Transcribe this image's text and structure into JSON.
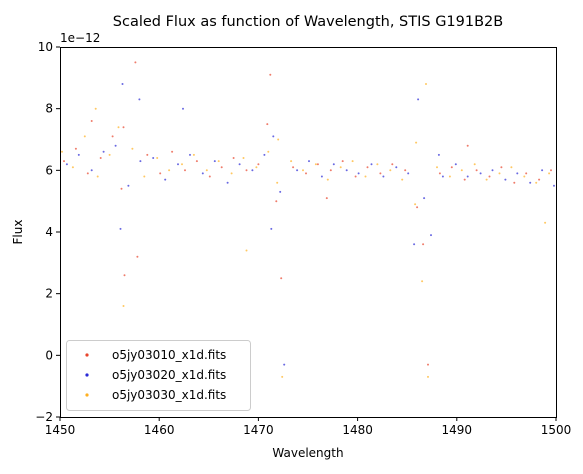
{
  "chart_data": {
    "type": "scatter",
    "title": "Scaled Flux as function of Wavelength, STIS G191B2B",
    "xlabel": "Wavelength",
    "ylabel": "Flux",
    "offset_text": "1e−12",
    "xlim": [
      1450,
      1500
    ],
    "ylim": [
      -2,
      10
    ],
    "xticks": [
      1450,
      1460,
      1470,
      1480,
      1490,
      1500
    ],
    "yticks": [
      -2,
      0,
      2,
      4,
      6,
      8,
      10
    ],
    "grid": false,
    "legend_position": "lower-left",
    "marker_size": "small dots",
    "series": [
      {
        "name": "o5jy03010_x1d.fits",
        "color": "#e8452c",
        "x": [
          1450.4,
          1451.6,
          1452.8,
          1454.1,
          1455.3,
          1456.2,
          1456.5,
          1457.6,
          1458.8,
          1460.1,
          1461.3,
          1462.6,
          1463.8,
          1465.1,
          1466.3,
          1467.5,
          1468.8,
          1470.0,
          1471.2,
          1471.8,
          1472.3,
          1473.5,
          1474.8,
          1476.0,
          1477.3,
          1478.5,
          1479.8,
          1481.0,
          1482.3,
          1483.5,
          1484.8,
          1486.0,
          1486.6,
          1487.1,
          1488.3,
          1489.5,
          1490.8,
          1492.0,
          1493.3,
          1494.5,
          1495.8,
          1497.0,
          1498.3,
          1499.5,
          1457.8,
          1456.4,
          1470.9,
          1453.2,
          1476.9,
          1491.1
        ],
        "y": [
          6.3,
          6.7,
          5.9,
          6.4,
          7.1,
          5.4,
          2.6,
          9.5,
          6.5,
          5.9,
          6.6,
          6.0,
          6.3,
          5.8,
          6.1,
          6.4,
          6.0,
          6.2,
          9.1,
          5.0,
          2.5,
          6.1,
          5.9,
          6.2,
          6.0,
          6.3,
          5.8,
          6.1,
          5.9,
          6.2,
          6.0,
          4.8,
          3.6,
          -0.3,
          5.9,
          6.1,
          5.7,
          6.0,
          5.8,
          6.1,
          5.6,
          5.9,
          5.7,
          6.0,
          3.2,
          7.4,
          7.5,
          7.6,
          5.1,
          6.8
        ]
      },
      {
        "name": "o5jy03020_x1d.fits",
        "color": "#2a2ad6",
        "x": [
          1450.7,
          1451.9,
          1453.2,
          1454.4,
          1455.6,
          1456.3,
          1456.9,
          1458.1,
          1459.4,
          1460.6,
          1461.9,
          1463.1,
          1464.4,
          1465.6,
          1466.9,
          1468.1,
          1469.4,
          1470.6,
          1471.5,
          1472.2,
          1472.6,
          1473.9,
          1475.1,
          1476.4,
          1477.6,
          1478.9,
          1480.1,
          1481.4,
          1482.6,
          1483.9,
          1485.1,
          1486.1,
          1486.7,
          1487.4,
          1488.6,
          1489.9,
          1491.1,
          1492.4,
          1493.6,
          1494.9,
          1496.1,
          1497.4,
          1498.6,
          1499.8,
          1456.1,
          1462.4,
          1458.0,
          1471.3,
          1485.7,
          1488.2
        ],
        "y": [
          6.2,
          6.5,
          6.0,
          6.6,
          6.8,
          8.8,
          5.5,
          6.3,
          6.4,
          5.7,
          6.2,
          6.5,
          5.9,
          6.3,
          5.6,
          6.2,
          6.0,
          6.5,
          7.1,
          5.3,
          -0.3,
          6.0,
          6.3,
          5.8,
          6.2,
          6.0,
          5.9,
          6.2,
          5.8,
          6.1,
          5.9,
          8.3,
          5.1,
          3.9,
          5.8,
          6.2,
          5.8,
          5.9,
          6.0,
          5.7,
          5.9,
          5.6,
          6.0,
          5.5,
          4.1,
          8.0,
          8.3,
          4.1,
          3.6,
          6.5
        ]
      },
      {
        "name": "o5jy03030_x1d.fits",
        "color": "#ffb020",
        "x": [
          1450.2,
          1451.3,
          1452.5,
          1453.8,
          1455.0,
          1455.9,
          1456.4,
          1457.3,
          1458.5,
          1459.8,
          1461.0,
          1462.3,
          1463.5,
          1464.8,
          1466.0,
          1467.3,
          1468.5,
          1469.8,
          1471.0,
          1471.9,
          1472.4,
          1473.3,
          1474.5,
          1475.8,
          1477.0,
          1478.3,
          1479.5,
          1480.8,
          1482.0,
          1483.3,
          1484.5,
          1485.8,
          1486.5,
          1487.1,
          1488.0,
          1489.3,
          1490.5,
          1491.8,
          1493.0,
          1494.3,
          1495.5,
          1496.8,
          1498.0,
          1499.3,
          1453.6,
          1468.8,
          1486.9,
          1498.9,
          1472.0,
          1485.9
        ],
        "y": [
          6.6,
          6.1,
          7.1,
          5.8,
          6.5,
          7.4,
          1.6,
          6.7,
          5.8,
          6.4,
          6.0,
          6.2,
          6.5,
          6.0,
          6.3,
          5.9,
          6.4,
          6.1,
          6.6,
          5.6,
          -0.7,
          6.3,
          6.0,
          6.2,
          5.7,
          6.1,
          6.3,
          5.8,
          6.2,
          6.0,
          5.7,
          4.9,
          2.4,
          -0.7,
          6.1,
          5.8,
          6.0,
          6.2,
          5.7,
          5.9,
          6.1,
          5.8,
          5.6,
          5.9,
          8.0,
          3.4,
          8.8,
          4.3,
          7.0,
          6.9
        ]
      }
    ]
  }
}
